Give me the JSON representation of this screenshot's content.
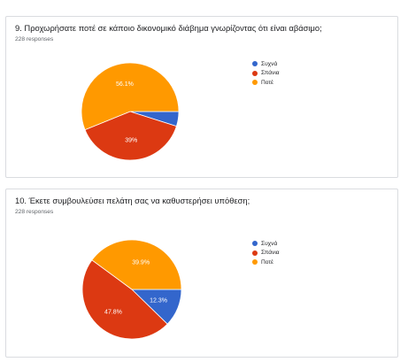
{
  "chart_data": [
    {
      "type": "pie",
      "title": "9. Προχωρήσατε ποτέ σε κάποιο δικονομικό διάβημα γνωρίζοντας ότι είναι αβάσιμο;",
      "responses": "228 responses",
      "categories": [
        "Συχνά",
        "Σπάνια",
        "Ποτέ"
      ],
      "values": [
        4.9,
        39,
        56.1
      ],
      "labels": [
        "",
        "39%",
        "56.1%"
      ],
      "colors": [
        "#3366cc",
        "#dc3912",
        "#ff9900"
      ]
    },
    {
      "type": "pie",
      "title": "10. Έκετε συμβουλεύσει πελάτη σας να καθυστερήσει υπόθεση;",
      "responses": "228 responses",
      "categories": [
        "Συχνά",
        "Σπάνια",
        "Ποτέ"
      ],
      "values": [
        12.3,
        47.8,
        39.9
      ],
      "labels": [
        "12.3%",
        "47.8%",
        "39.9%"
      ],
      "colors": [
        "#3366cc",
        "#dc3912",
        "#ff9900"
      ]
    }
  ]
}
